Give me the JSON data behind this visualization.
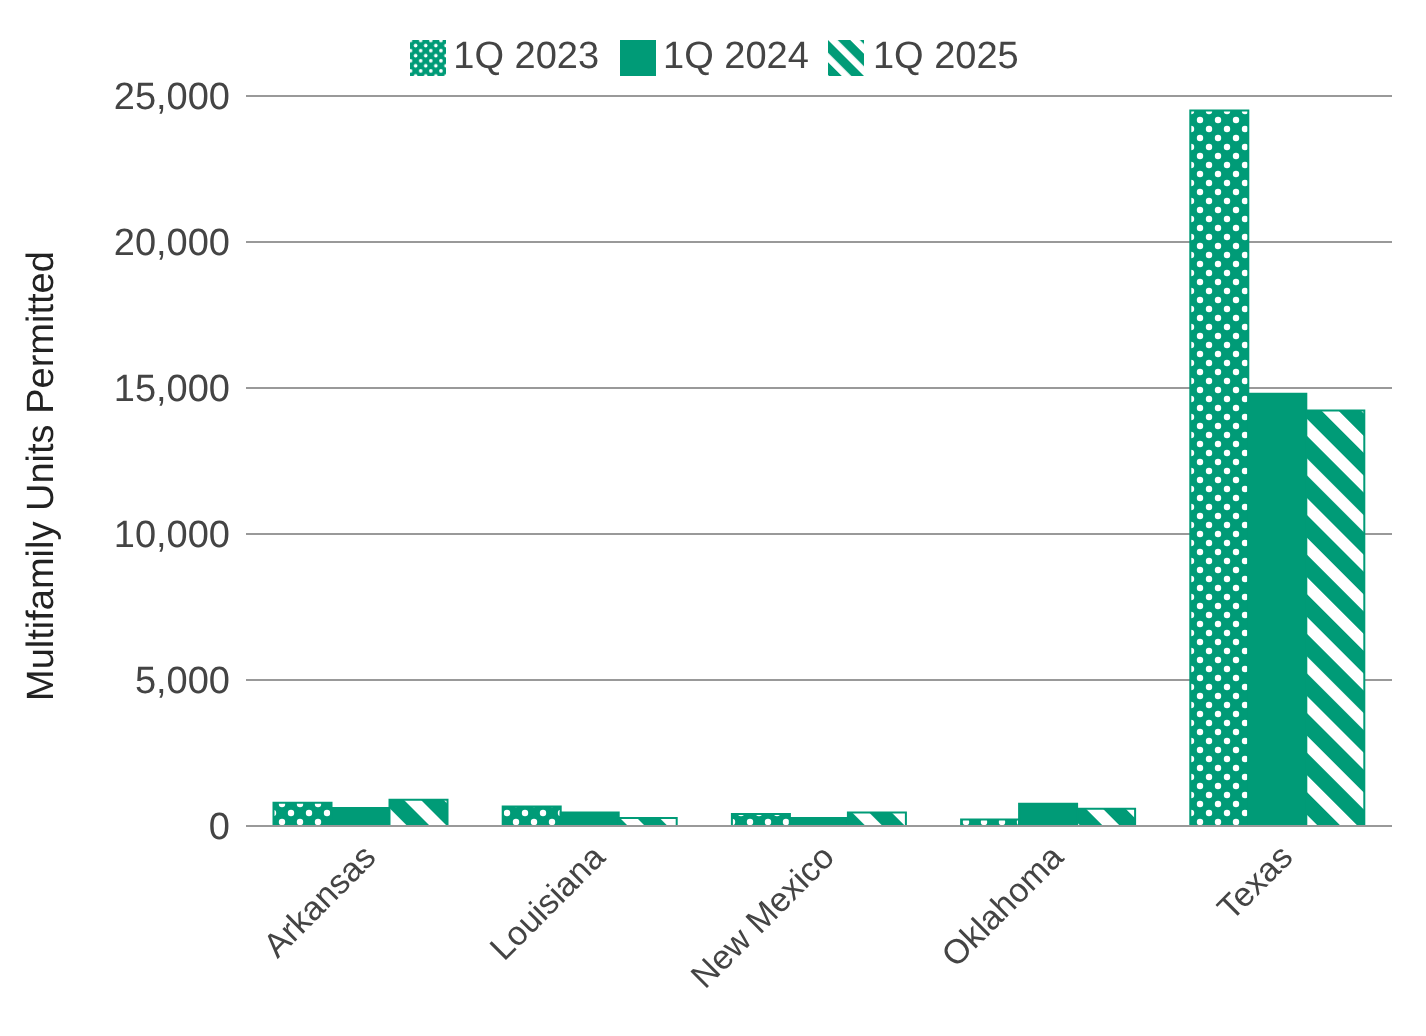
{
  "chart_data": {
    "type": "bar",
    "ylabel": "Multifamily Units Permitted",
    "categories": [
      "Arkansas",
      "Louisiana",
      "New Mexico",
      "Oklahoma",
      "Texas"
    ],
    "series": [
      {
        "name": "1Q 2023",
        "color": "#009b77",
        "values": [
          800,
          670,
          410,
          220,
          24500
        ]
      },
      {
        "name": "1Q 2024",
        "color": "#009b77",
        "values": [
          620,
          460,
          270,
          760,
          14800
        ]
      },
      {
        "name": "1Q 2025",
        "color": "#009b77",
        "values": [
          900,
          270,
          460,
          590,
          14230
        ]
      }
    ],
    "ylim": [
      0,
      25000
    ],
    "yticks": [
      0,
      {
        "value": 5000,
        "label": "5,000"
      },
      {
        "value": 10000,
        "label": "10,000"
      },
      {
        "value": 15000,
        "label": "15,000"
      },
      {
        "value": 20000,
        "label": "20,000"
      },
      {
        "value": 25000,
        "label": "25,000"
      }
    ],
    "grid": "y",
    "legend": "top"
  }
}
